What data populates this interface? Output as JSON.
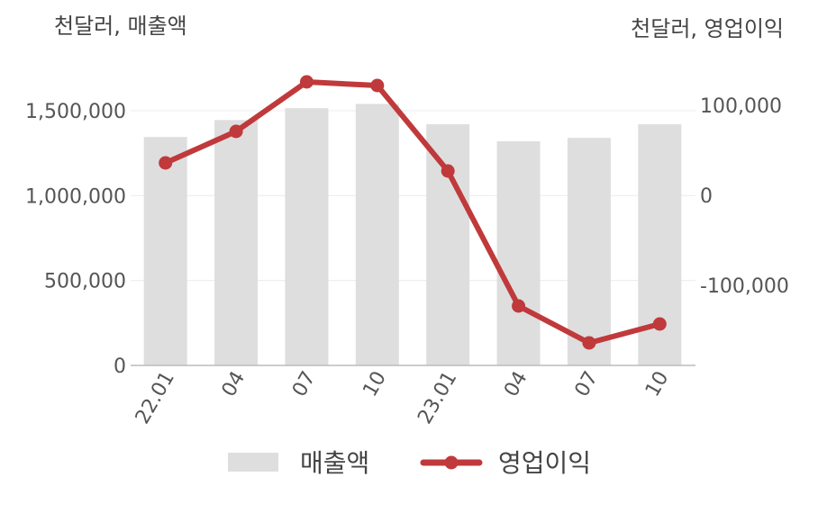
{
  "chart_data": {
    "type": "bar+line",
    "categories": [
      "22.01",
      "04",
      "07",
      "10",
      "23.01",
      "04",
      "07",
      "10"
    ],
    "series": [
      {
        "name": "매출액",
        "type": "bar",
        "axis": "left",
        "color": "#dedede",
        "values": [
          1345000,
          1445000,
          1515000,
          1540000,
          1420000,
          1320000,
          1340000,
          1420000
        ]
      },
      {
        "name": "영업이익",
        "type": "line",
        "axis": "right",
        "color": "#c0393b",
        "values": [
          36000,
          71000,
          126000,
          122000,
          27000,
          -123000,
          -164000,
          -143000
        ]
      }
    ],
    "left_axis": {
      "unit": "천달러, 매출액",
      "ylim": [
        0,
        1500000
      ],
      "ticks": [
        0,
        500000,
        1000000,
        1500000
      ],
      "tick_labels": [
        "0",
        "500,000",
        "1,000,000",
        "1,500,000"
      ]
    },
    "right_axis": {
      "unit": "천달러, 영업이익",
      "ylim": [
        -100000,
        100000
      ],
      "ticks": [
        -100000,
        0,
        100000
      ],
      "tick_labels": [
        "-100,000",
        "0",
        "100,000"
      ]
    },
    "grid": true,
    "legend_position": "bottom"
  }
}
